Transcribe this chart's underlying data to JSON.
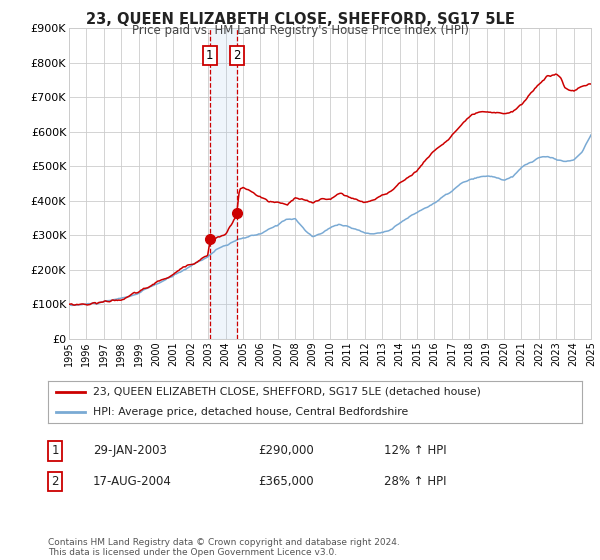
{
  "title": "23, QUEEN ELIZABETH CLOSE, SHEFFORD, SG17 5LE",
  "subtitle": "Price paid vs. HM Land Registry's House Price Index (HPI)",
  "legend_line1": "23, QUEEN ELIZABETH CLOSE, SHEFFORD, SG17 5LE (detached house)",
  "legend_line2": "HPI: Average price, detached house, Central Bedfordshire",
  "transaction1_date": "29-JAN-2003",
  "transaction1_price": "£290,000",
  "transaction1_hpi": "12% ↑ HPI",
  "transaction2_date": "17-AUG-2004",
  "transaction2_price": "£365,000",
  "transaction2_hpi": "28% ↑ HPI",
  "footnote": "Contains HM Land Registry data © Crown copyright and database right 2024.\nThis data is licensed under the Open Government Licence v3.0.",
  "red_color": "#cc0000",
  "blue_color": "#7aaad4",
  "background_color": "#ffffff",
  "grid_color": "#cccccc",
  "transaction1_x": 2003.08,
  "transaction1_y": 290000,
  "transaction2_x": 2004.63,
  "transaction2_y": 365000,
  "xmin": 1995,
  "xmax": 2025,
  "ymin": 0,
  "ymax": 900000,
  "yticks": [
    0,
    100000,
    200000,
    300000,
    400000,
    500000,
    600000,
    700000,
    800000,
    900000
  ],
  "ytick_labels": [
    "£0",
    "£100K",
    "£200K",
    "£300K",
    "£400K",
    "£500K",
    "£600K",
    "£700K",
    "£800K",
    "£900K"
  ]
}
